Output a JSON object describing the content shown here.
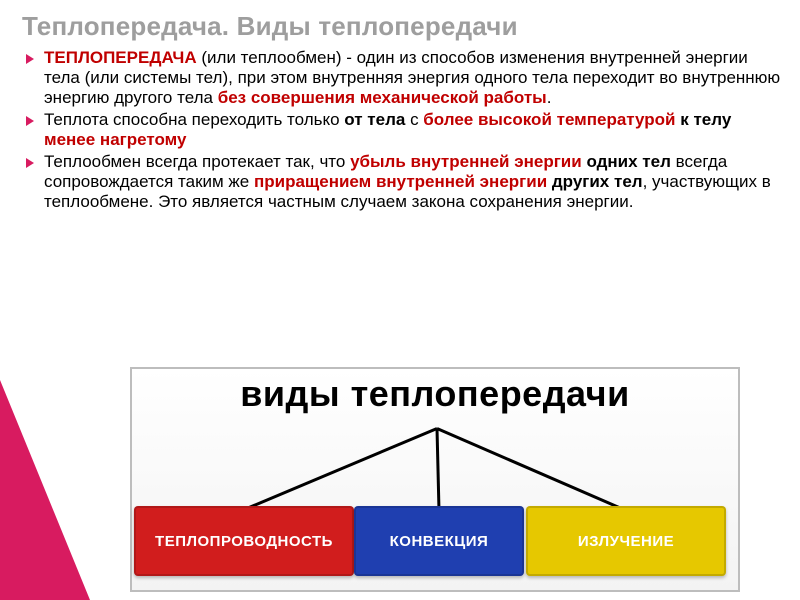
{
  "title": {
    "text": "Теплопередача. Виды теплопередачи",
    "color": "#9e9e9e",
    "fontsize": 26
  },
  "bullets": [
    {
      "runs": [
        {
          "text": "ТЕПЛОПЕРЕДАЧА",
          "style": "red-bold"
        },
        {
          "text": " (или теплообмен) - один из способов изменения внутренней энергии тела (или системы тел), при этом внутренняя энергия одного тела переходит во внутреннюю энергию другого тела ",
          "style": "plain"
        },
        {
          "text": "без совершения механической работы",
          "style": "red-bold"
        },
        {
          "text": ".",
          "style": "plain"
        }
      ]
    },
    {
      "runs": [
        {
          "text": "Теплота способна переходить только ",
          "style": "plain"
        },
        {
          "text": "от тела",
          "style": "bold"
        },
        {
          "text": " с ",
          "style": "plain"
        },
        {
          "text": "более высокой температурой",
          "style": "red-bold"
        },
        {
          "text": " ",
          "style": "plain"
        },
        {
          "text": "к телу",
          "style": "bold"
        },
        {
          "text": " ",
          "style": "plain"
        },
        {
          "text": "менее нагретому",
          "style": "red-bold"
        }
      ]
    },
    {
      "runs": [
        {
          "text": "Теплообмен всегда протекает так, что ",
          "style": "plain"
        },
        {
          "text": "убыль внутренней энергии ",
          "style": "red-bold"
        },
        {
          "text": "одних тел",
          "style": "bold"
        },
        {
          "text": " всегда сопровождается таким же ",
          "style": "plain"
        },
        {
          "text": "приращением внутренней энергии ",
          "style": "red-bold"
        },
        {
          "text": "других тел",
          "style": "bold"
        },
        {
          "text": ", участвующих в теплообмене.  Это является частным случаем закона сохранения энергии.",
          "style": "plain"
        }
      ]
    }
  ],
  "diagram": {
    "type": "tree",
    "title": "виды теплопередачи",
    "title_fontsize": 36,
    "background": "#f7f7f7",
    "border_color": "#bdbdbd",
    "branch_color": "#000000",
    "nodes": [
      {
        "label": "ТЕПЛОПРОВОДНОСТЬ",
        "pos": "left",
        "color": "#d11d1d"
      },
      {
        "label": "КОНВЕКЦИЯ",
        "pos": "center",
        "color": "#1f3fb0"
      },
      {
        "label": "ИЗЛУЧЕНИЕ",
        "pos": "right",
        "color": "#e6c800"
      }
    ]
  },
  "accent_color": "#d81b60"
}
